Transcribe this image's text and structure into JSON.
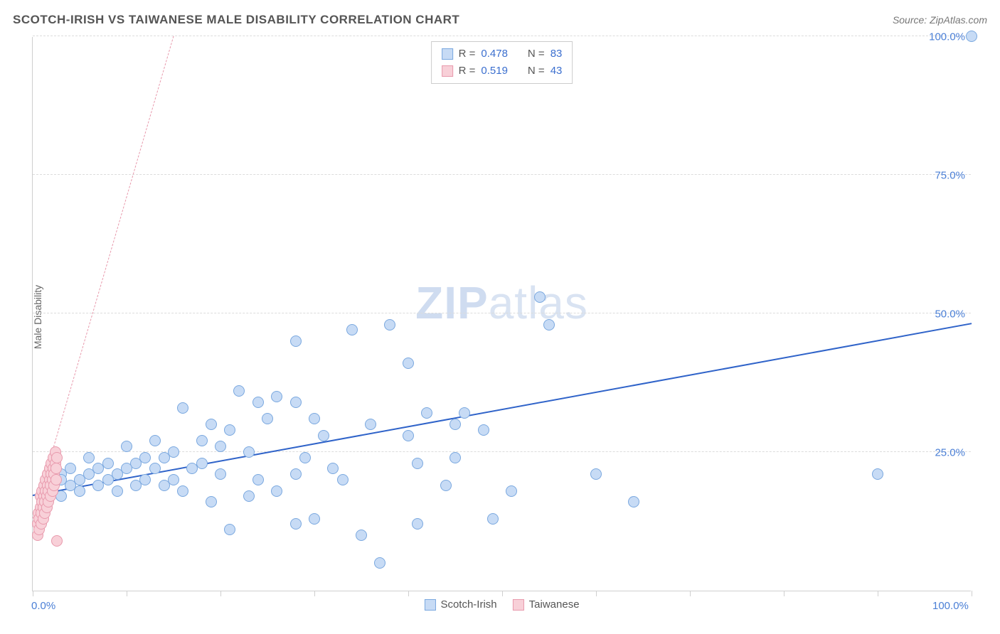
{
  "header": {
    "title": "SCOTCH-IRISH VS TAIWANESE MALE DISABILITY CORRELATION CHART",
    "source_prefix": "Source: ",
    "source_name": "ZipAtlas.com"
  },
  "watermark": {
    "part1": "ZIP",
    "part2": "atlas"
  },
  "chart": {
    "type": "scatter",
    "ylabel": "Male Disability",
    "background_color": "#ffffff",
    "grid_color": "#dcdcdc",
    "axis_color": "#cfcfcf",
    "label_color": "#666666",
    "tick_label_color": "#4a7fd6",
    "xlim": [
      0,
      100
    ],
    "ylim": [
      0,
      100
    ],
    "xtick_positions": [
      0,
      10,
      20,
      30,
      40,
      50,
      60,
      70,
      80,
      90,
      100
    ],
    "xtick_labels": {
      "0": "0.0%",
      "100": "100.0%"
    },
    "ytick_positions": [
      25,
      50,
      75,
      100
    ],
    "ytick_labels": {
      "25": "25.0%",
      "50": "50.0%",
      "75": "75.0%",
      "100": "100.0%"
    },
    "point_radius": 8,
    "point_border_width": 1.2,
    "series": [
      {
        "name": "Scotch-Irish",
        "fill_color": "#c7dbf5",
        "stroke_color": "#7aa8df",
        "trend": {
          "x1": 0,
          "y1": 17,
          "x2": 100,
          "y2": 48,
          "color": "#2f63c9",
          "width": 2.2,
          "dash": "solid"
        },
        "points": [
          [
            100,
            100
          ],
          [
            90,
            21
          ],
          [
            64,
            16
          ],
          [
            60,
            21
          ],
          [
            55,
            48
          ],
          [
            54,
            53
          ],
          [
            51,
            18
          ],
          [
            49,
            13
          ],
          [
            48,
            29
          ],
          [
            46,
            32
          ],
          [
            45,
            30
          ],
          [
            45,
            24
          ],
          [
            44,
            19
          ],
          [
            42,
            32
          ],
          [
            41,
            23
          ],
          [
            41,
            12
          ],
          [
            40,
            28
          ],
          [
            40,
            41
          ],
          [
            38,
            48
          ],
          [
            37,
            5
          ],
          [
            36,
            30
          ],
          [
            35,
            10
          ],
          [
            34,
            47
          ],
          [
            33,
            20
          ],
          [
            32,
            22
          ],
          [
            31,
            28
          ],
          [
            30,
            31
          ],
          [
            30,
            13
          ],
          [
            29,
            24
          ],
          [
            28,
            34
          ],
          [
            28,
            21
          ],
          [
            28,
            45
          ],
          [
            28,
            12
          ],
          [
            26,
            35
          ],
          [
            26,
            18
          ],
          [
            25,
            31
          ],
          [
            24,
            34
          ],
          [
            24,
            20
          ],
          [
            23,
            25
          ],
          [
            23,
            17
          ],
          [
            22,
            36
          ],
          [
            21,
            29
          ],
          [
            21,
            11
          ],
          [
            20,
            26
          ],
          [
            20,
            21
          ],
          [
            19,
            30
          ],
          [
            19,
            16
          ],
          [
            18,
            23
          ],
          [
            18,
            27
          ],
          [
            17,
            22
          ],
          [
            16,
            33
          ],
          [
            16,
            18
          ],
          [
            15,
            25
          ],
          [
            15,
            20
          ],
          [
            14,
            24
          ],
          [
            14,
            19
          ],
          [
            13,
            27
          ],
          [
            13,
            22
          ],
          [
            12,
            20
          ],
          [
            12,
            24
          ],
          [
            11,
            23
          ],
          [
            11,
            19
          ],
          [
            10,
            22
          ],
          [
            10,
            26
          ],
          [
            9,
            21
          ],
          [
            9,
            18
          ],
          [
            8,
            23
          ],
          [
            8,
            20
          ],
          [
            7,
            22
          ],
          [
            7,
            19
          ],
          [
            6,
            21
          ],
          [
            6,
            24
          ],
          [
            5,
            20
          ],
          [
            5,
            18
          ],
          [
            4,
            22
          ],
          [
            4,
            19
          ],
          [
            3,
            21
          ],
          [
            3,
            17
          ],
          [
            3,
            20
          ],
          [
            2,
            19
          ],
          [
            2,
            21
          ],
          [
            2,
            18
          ],
          [
            2,
            20
          ]
        ]
      },
      {
        "name": "Taiwanese",
        "fill_color": "#f8d0d8",
        "stroke_color": "#e89aad",
        "trend": {
          "x1": 0,
          "y1": 13,
          "x2": 15,
          "y2": 100,
          "color": "#e89aad",
          "width": 1.5,
          "dash": "dashed"
        },
        "points": [
          [
            0.5,
            10
          ],
          [
            0.5,
            12
          ],
          [
            0.6,
            14
          ],
          [
            0.7,
            11
          ],
          [
            0.7,
            13
          ],
          [
            0.8,
            15
          ],
          [
            0.8,
            17
          ],
          [
            0.9,
            12
          ],
          [
            0.9,
            14
          ],
          [
            1.0,
            16
          ],
          [
            1.0,
            18
          ],
          [
            1.1,
            13
          ],
          [
            1.1,
            15
          ],
          [
            1.2,
            17
          ],
          [
            1.2,
            19
          ],
          [
            1.3,
            14
          ],
          [
            1.3,
            16
          ],
          [
            1.4,
            18
          ],
          [
            1.4,
            20
          ],
          [
            1.5,
            15
          ],
          [
            1.5,
            17
          ],
          [
            1.6,
            19
          ],
          [
            1.6,
            21
          ],
          [
            1.7,
            16
          ],
          [
            1.7,
            18
          ],
          [
            1.8,
            20
          ],
          [
            1.8,
            22
          ],
          [
            1.9,
            17
          ],
          [
            1.9,
            19
          ],
          [
            2.0,
            21
          ],
          [
            2.0,
            23
          ],
          [
            2.1,
            18
          ],
          [
            2.1,
            20
          ],
          [
            2.2,
            22
          ],
          [
            2.2,
            24
          ],
          [
            2.3,
            19
          ],
          [
            2.3,
            21
          ],
          [
            2.4,
            23
          ],
          [
            2.4,
            25
          ],
          [
            2.5,
            20
          ],
          [
            2.5,
            22
          ],
          [
            2.6,
            24
          ],
          [
            2.6,
            9
          ]
        ]
      }
    ]
  },
  "stats_legend": {
    "rows": [
      {
        "swatch_fill": "#c7dbf5",
        "swatch_stroke": "#7aa8df",
        "r_label": "R =",
        "r_value": "0.478",
        "n_label": "N =",
        "n_value": "83"
      },
      {
        "swatch_fill": "#f8d0d8",
        "swatch_stroke": "#e89aad",
        "r_label": "R =",
        "r_value": "0.519",
        "n_label": "N =",
        "n_value": "43"
      }
    ]
  },
  "bottom_legend": {
    "items": [
      {
        "swatch_fill": "#c7dbf5",
        "swatch_stroke": "#7aa8df",
        "label": "Scotch-Irish"
      },
      {
        "swatch_fill": "#f8d0d8",
        "swatch_stroke": "#e89aad",
        "label": "Taiwanese"
      }
    ]
  }
}
